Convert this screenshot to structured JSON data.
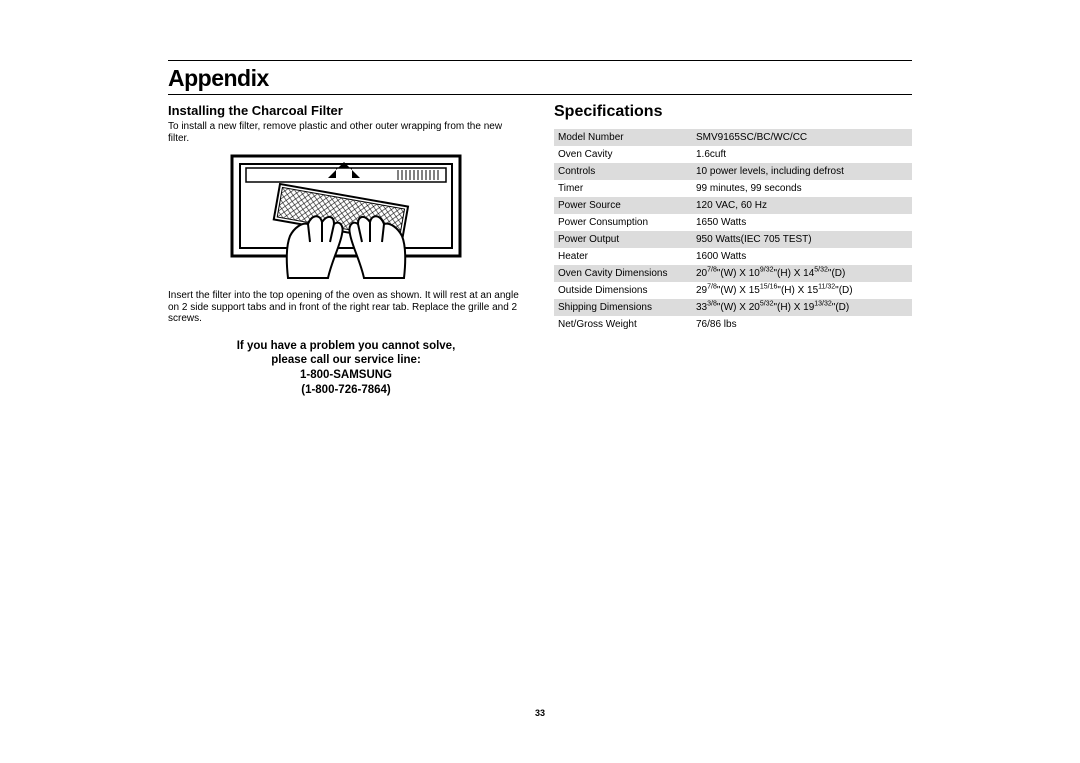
{
  "header": {
    "title": "Appendix"
  },
  "left": {
    "subheading": "Installing the Charcoal Filter",
    "intro": "To install a new filter, remove plastic and other outer wrapping from the new filter.",
    "caption": "Insert the filter into the top opening of the oven as shown. It will rest at an angle on 2 side support tabs and in front of the right rear tab. Replace the grille and 2 screws.",
    "callout": {
      "line1": "If you have a problem you cannot solve,",
      "line2": "please call our service line:",
      "line3": "1-800-SAMSUNG",
      "line4": "(1-800-726-7864)"
    }
  },
  "right": {
    "title": "Specifications",
    "rows": [
      {
        "label": "Model Number",
        "value": "SMV9165SC/BC/WC/CC"
      },
      {
        "label": "Oven Cavity",
        "value": "1.6cuft"
      },
      {
        "label": "Controls",
        "value": "10 power levels, including defrost"
      },
      {
        "label": "Timer",
        "value": "99 minutes, 99 seconds"
      },
      {
        "label": "Power Source",
        "value": "120 VAC, 60 Hz"
      },
      {
        "label": "Power Consumption",
        "value": "1650 Watts"
      },
      {
        "label": "Power Output",
        "value": "950 Watts(IEC 705 TEST)"
      },
      {
        "label": "Heater",
        "value": "1600 Watts"
      },
      {
        "label": "Oven Cavity Dimensions",
        "value_html": "20<sup>7/8</sup>\"(W) X 10<sup>9/32</sup>\"(H) X 14<sup>5/32</sup>\"(D)"
      },
      {
        "label": "Outside Dimensions",
        "value_html": "29<sup>7/8</sup>\"(W) X 15<sup>15/16</sup>\"(H) X 15<sup>11/32</sup>\"(D)"
      },
      {
        "label": "Shipping Dimensions",
        "value_html": "33<sup>3/8</sup>\"(W) X 20<sup>5/32</sup>\"(H) X 19<sup>13/32</sup>\"(D)"
      },
      {
        "label": "Net/Gross Weight",
        "value": "76/86 lbs"
      }
    ]
  },
  "page_number": "33",
  "colors": {
    "shade": "#dcdcdc",
    "text": "#000000",
    "bg": "#ffffff"
  }
}
